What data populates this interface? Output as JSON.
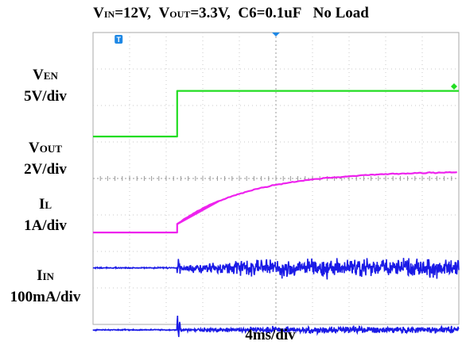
{
  "title": {
    "vin_symbol": "V",
    "vin_sub": "IN",
    "vin_value": "=12V,",
    "vout_symbol": "V",
    "vout_sub": "OUT",
    "vout_value": "=3.3V,",
    "c6": "C6=0.1uF",
    "load": "No Load"
  },
  "channels": [
    {
      "symbol": "V",
      "sub": "EN",
      "scale": "5V/div",
      "color": "#22dd22"
    },
    {
      "symbol": "V",
      "sub": "OUT",
      "scale": "2V/div",
      "color": "#ee22ee"
    },
    {
      "symbol": "I",
      "sub": "L",
      "scale": "1A/div",
      "color": "#1a1ae6"
    },
    {
      "symbol": "I",
      "sub": "IN",
      "scale": "100mA/div",
      "color": "#1a1ae6"
    }
  ],
  "timebase": "4ms/div",
  "chart_data": {
    "type": "line",
    "grid": true,
    "x_divisions": 10,
    "y_divisions": 8,
    "trigger_marker": "T",
    "series": [
      {
        "name": "VEN",
        "unit_per_div": "5V/div",
        "divisions": [
          [
            0,
            5.15
          ],
          [
            2.3,
            5.15
          ],
          [
            2.3,
            6.4
          ],
          [
            10,
            6.4
          ]
        ]
      },
      {
        "name": "VOUT",
        "unit_per_div": "2V/div",
        "divisions": [
          [
            0,
            2.52
          ],
          [
            2.3,
            2.52
          ],
          [
            2.3,
            2.75
          ],
          [
            3.5,
            3.4
          ],
          [
            5,
            3.95
          ],
          [
            7,
            4.15
          ],
          [
            10,
            4.2
          ]
        ]
      },
      {
        "name": "IL",
        "unit_per_div": "1A/div",
        "baseline_div": 1.55,
        "enabled_after_div": 2.3
      },
      {
        "name": "IIN",
        "unit_per_div": "100mA/div",
        "baseline_div": -0.15,
        "enabled_after_div": 2.3
      }
    ]
  }
}
